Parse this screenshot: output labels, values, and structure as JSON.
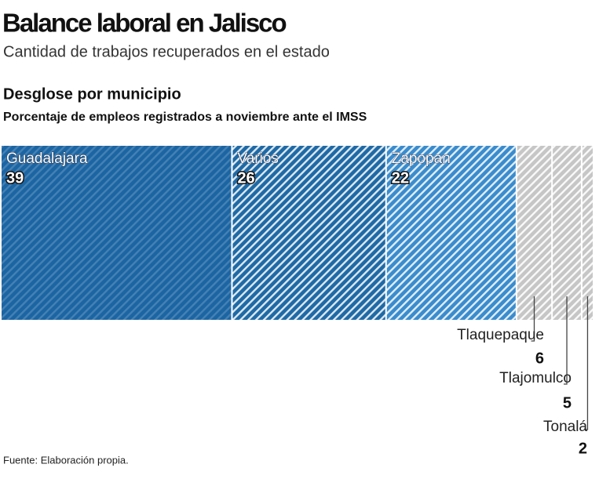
{
  "chart_data": {
    "type": "bar",
    "orientation": "horizontal-stacked",
    "title": "Balance laboral en Jalisco",
    "subtitle": "Cantidad de trabajos recuperados en el estado",
    "heading": "Desglose por municipio",
    "description": "Porcentaje de empleos registrados a noviembre ante el IMSS",
    "source": "Fuente: Elaboración propia.",
    "categories": [
      "Guadalajara",
      "Varios",
      "Zapopan",
      "Tlaquepaque",
      "Tlajomulco",
      "Tonalá"
    ],
    "values": [
      39,
      26,
      22,
      6,
      5,
      2
    ],
    "colors": [
      "#1c65a3",
      "#1f6aa6",
      "#3a8ccd",
      "#c6c6c6",
      "#c6c6c6",
      "#c6c6c6"
    ],
    "xlim": [
      0,
      100
    ]
  }
}
